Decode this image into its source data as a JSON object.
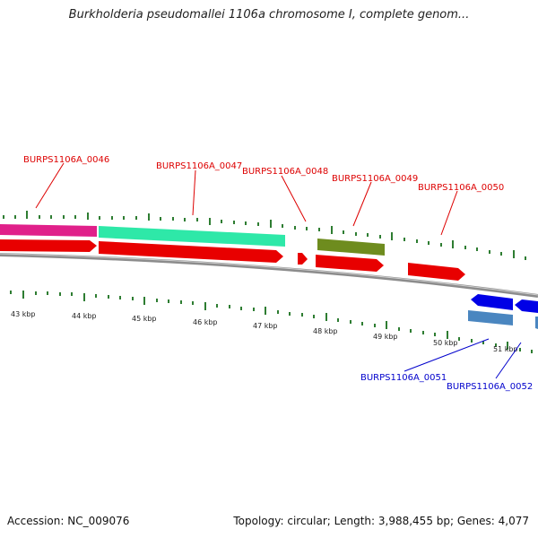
{
  "title": "Burkholderia pseudomallei 1106a chromosome I, complete genom...",
  "accession": "Accession: NC_009076",
  "topology": "Topology: circular; Length: 3,988,455 bp; Genes: 4,077",
  "colors": {
    "forward_label": "#dd0000",
    "reverse_label": "#0000cc",
    "tick": "#2e7d32",
    "backbone": "#8c8c8c",
    "cds": "#e80000",
    "magenta_gene": "#e0208a",
    "teal_gene": "#2ee8a8",
    "olive_gene": "#6e8c1e",
    "reverse_gene": "#0000e6",
    "reverse_light_gene": "#4a86c0"
  },
  "kbp_labels": [
    "43 kbp",
    "44 kbp",
    "45 kbp",
    "46 kbp",
    "47 kbp",
    "48 kbp",
    "49 kbp",
    "50 kbp",
    "51 kbp"
  ],
  "forward_labels": [
    "BURPS1106A_0046",
    "BURPS1106A_0047",
    "BURPS1106A_0048",
    "BURPS1106A_0049",
    "BURPS1106A_0050"
  ],
  "reverse_labels": [
    "BURPS1106A_0051",
    "BURPS1106A_0052"
  ]
}
